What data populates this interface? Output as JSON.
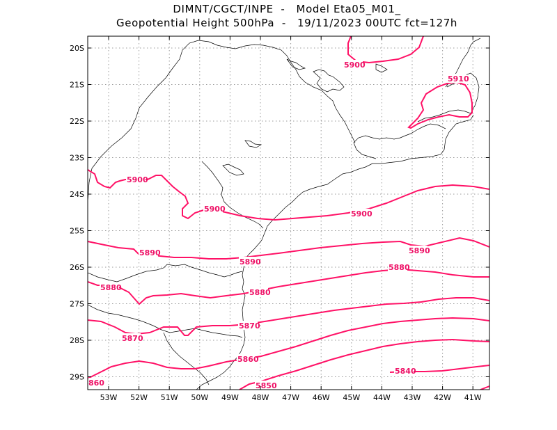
{
  "header": {
    "line1": "DIMNT/CGCT/INPE  -   Model Eta05_M01_",
    "line2": "Geopotential Height 500hPa  -   19/11/2023 00UTC fct=127h"
  },
  "map": {
    "lat_labels": [
      "20S",
      "21S",
      "22S",
      "23S",
      "24S",
      "25S",
      "26S",
      "27S",
      "28S",
      "29S"
    ],
    "lon_labels": [
      "53W",
      "52W",
      "51W",
      "50W",
      "49W",
      "48W",
      "47W",
      "46W",
      "45W",
      "44W",
      "43W",
      "42W",
      "41W"
    ],
    "contour_color": "#ff1166",
    "contour_labels": {
      "l5910": "5910",
      "l5900a": "5900",
      "l5900b": "5900",
      "l5900c": "5900",
      "l5900d": "5900",
      "l5890a": "5890",
      "l5890b": "5890",
      "l5890c": "5890",
      "l5880a": "5880",
      "l5880b": "5880",
      "l5880c": "5880",
      "l5870a": "5870",
      "l5870b": "5870",
      "l5860": "5860",
      "l5850": "5850",
      "l5840": "5840",
      "l5860edge": "860"
    }
  }
}
